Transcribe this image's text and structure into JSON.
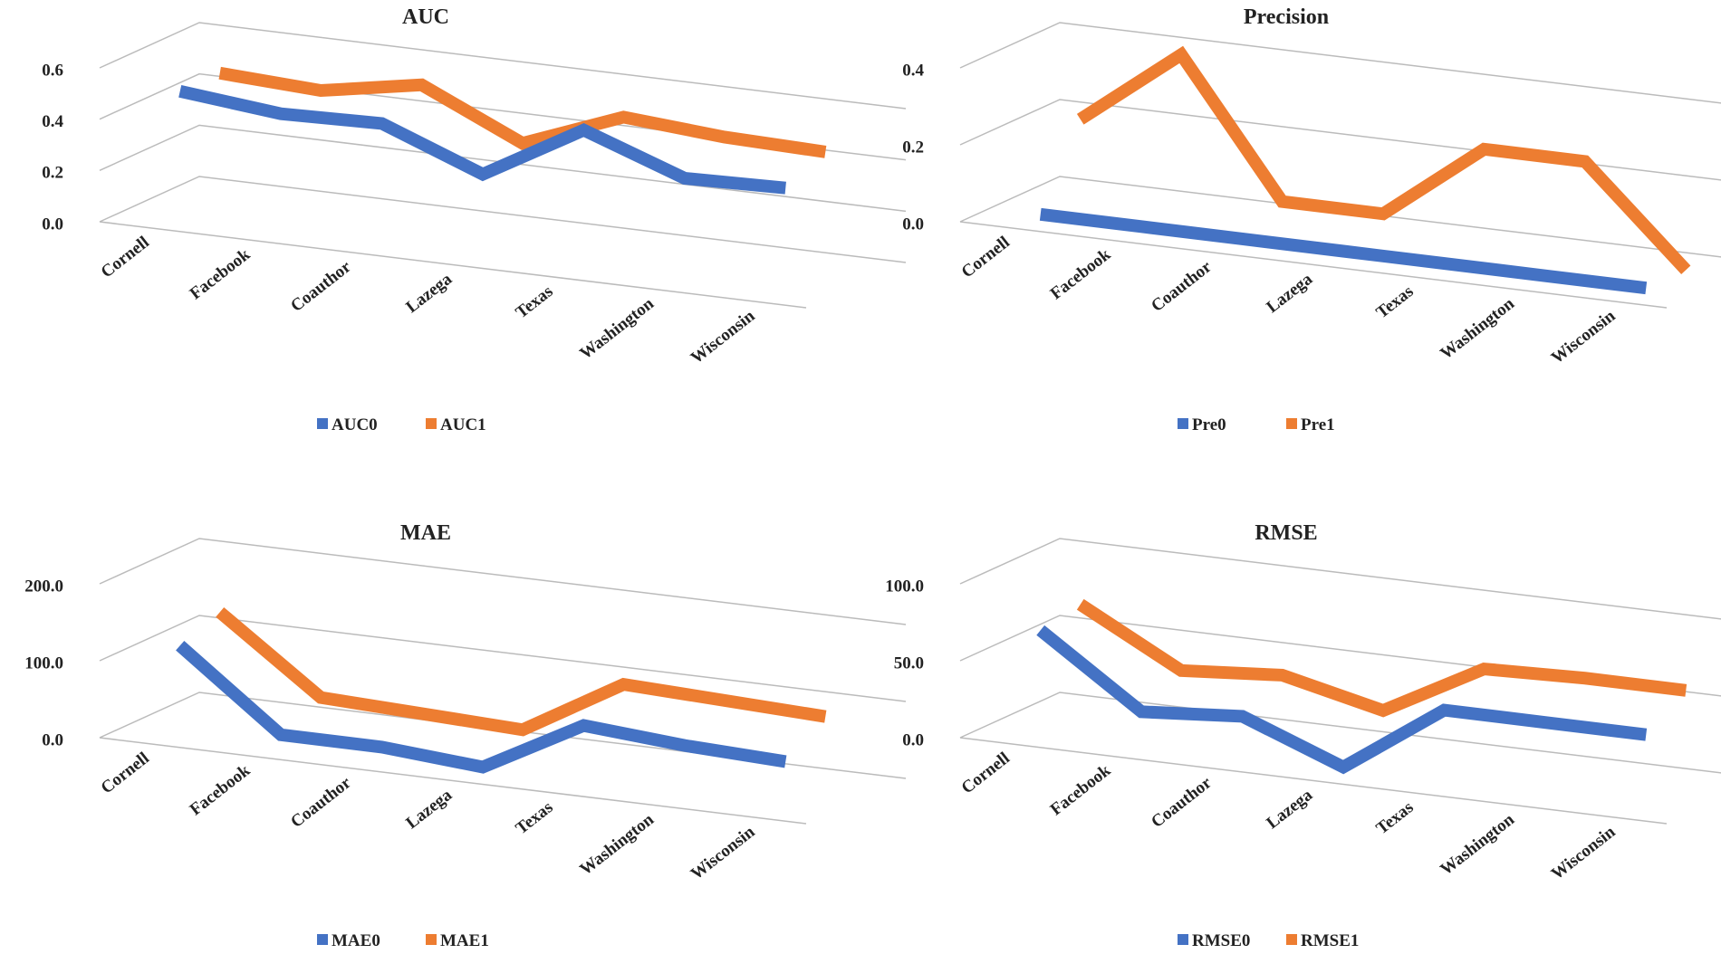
{
  "chart_data": [
    {
      "type": "line",
      "title": "AUC",
      "categories": [
        "Cornell",
        "Facebook",
        "Coauthor",
        "Lazega",
        "Texas",
        "Washington",
        "Wisconsin"
      ],
      "series": [
        {
          "name": "AUC0",
          "color": "#4472c4",
          "values": [
            0.48,
            0.44,
            0.45,
            0.3,
            0.52,
            0.38,
            0.39
          ]
        },
        {
          "name": "AUC1",
          "color": "#ed7d31",
          "values": [
            0.48,
            0.46,
            0.53,
            0.35,
            0.5,
            0.47,
            0.46
          ]
        }
      ],
      "ylim": [
        0,
        0.6
      ],
      "yticks": [
        {
          "value": 0,
          "label": "0.0"
        },
        0.2,
        0.4,
        0.6
      ],
      "grid": true,
      "legend": "bottom"
    },
    {
      "type": "line",
      "title": "Precision",
      "categories": [
        "Cornell",
        "Facebook",
        "Coauthor",
        "Lazega",
        "Texas",
        "Washington",
        "Wisconsin"
      ],
      "series": [
        {
          "name": "Pre0",
          "color": "#4472c4",
          "values": [
            0,
            0,
            0,
            0,
            0,
            0,
            0
          ]
        },
        {
          "name": "Pre1",
          "color": "#ed7d31",
          "values": [
            0.2,
            0.4,
            0.05,
            0.05,
            0.25,
            0.25,
            0
          ]
        }
      ],
      "ylim": [
        0,
        0.4
      ],
      "yticks": [
        {
          "value": 0,
          "label": "0.0"
        },
        0.2,
        0.4
      ],
      "grid": true,
      "legend": "bottom"
    },
    {
      "type": "line",
      "title": "MAE",
      "categories": [
        "Cornell",
        "Facebook",
        "Coauthor",
        "Lazega",
        "Texas",
        "Washington",
        "Wisconsin"
      ],
      "series": [
        {
          "name": "MAE0",
          "color": "#4472c4",
          "values": [
            110,
            10,
            10,
            0,
            70,
            60,
            55
          ]
        },
        {
          "name": "MAE1",
          "color": "#ed7d31",
          "values": [
            130,
            35,
            30,
            25,
            100,
            95,
            90
          ]
        }
      ],
      "ylim": [
        0,
        200
      ],
      "yticks": [
        {
          "value": 0,
          "label": "0.0"
        },
        {
          "value": 100,
          "label": "100.0"
        },
        {
          "value": 200,
          "label": "200.0"
        }
      ],
      "grid": true,
      "legend": "bottom"
    },
    {
      "type": "line",
      "title": "RMSE",
      "categories": [
        "Cornell",
        "Facebook",
        "Coauthor",
        "Lazega",
        "Texas",
        "Washington",
        "Wisconsin"
      ],
      "series": [
        {
          "name": "RMSE0",
          "color": "#4472c4",
          "values": [
            65,
            20,
            25,
            0,
            45,
            45,
            45
          ]
        },
        {
          "name": "RMSE1",
          "color": "#ed7d31",
          "values": [
            70,
            35,
            40,
            25,
            60,
            62,
            62
          ]
        }
      ],
      "ylim": [
        0,
        100
      ],
      "yticks": [
        {
          "value": 0,
          "label": "0.0"
        },
        {
          "value": 50,
          "label": "50.0"
        },
        {
          "value": 100,
          "label": "100.0"
        }
      ],
      "grid": true,
      "legend": "bottom"
    }
  ]
}
